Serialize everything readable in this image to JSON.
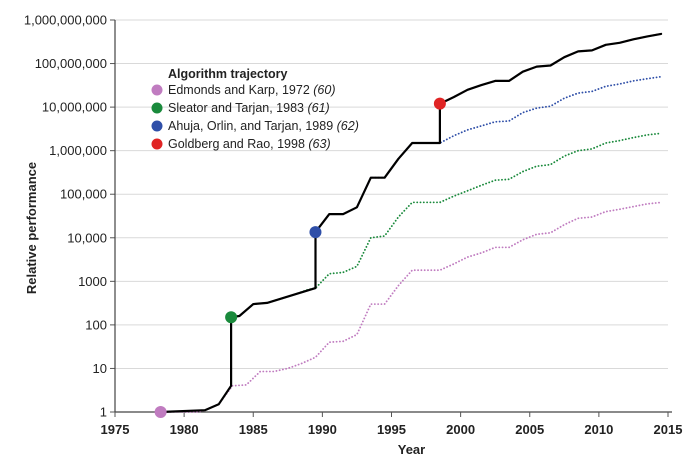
{
  "chart_data": {
    "type": "line",
    "xlabel": "Year",
    "ylabel": "Relative performance",
    "xlim": [
      1975,
      2015
    ],
    "ylim": [
      1,
      1000000000
    ],
    "y_scale": "log",
    "grid": "horizontal",
    "x_ticks": [
      1975,
      1980,
      1985,
      1990,
      1995,
      2000,
      2005,
      2010,
      2015
    ],
    "x_tick_labels": [
      "1975",
      "1980",
      "1985",
      "1990",
      "1995",
      "2000",
      "2005",
      "2010",
      "2015"
    ],
    "y_ticks": [
      1,
      10,
      100,
      1000,
      10000,
      100000,
      1000000,
      10000000,
      100000000,
      1000000000
    ],
    "y_tick_labels": [
      "1",
      "10",
      "100",
      "1000",
      "10,000",
      "100,000",
      "1,000,000",
      "10,000,000",
      "100,000,000",
      "1,000,000,000"
    ],
    "legend": {
      "title": "Algorithm trajectory",
      "position": "top-left",
      "entries": [
        {
          "label": "Edmonds and Karp, 1972 ",
          "ref": "(60)",
          "color": "#c07cc0"
        },
        {
          "label": "Sleator and Tarjan, 1983 ",
          "ref": "(61)",
          "color": "#1a8a3c"
        },
        {
          "label": "Ahuja, Orlin, and Tarjan, 1989 ",
          "ref": "(62)",
          "color": "#2f4fa8"
        },
        {
          "label": "Goldberg and Rao, 1998 ",
          "ref": "(63)",
          "color": "#e02424"
        }
      ]
    },
    "series": [
      {
        "name": "Edmonds and Karp, 1972 (60)",
        "color": "#c07cc0",
        "style": "dotted",
        "start_marker": [
          1978.3,
          1
        ],
        "x": [
          1978.3,
          1979,
          1980,
          1981,
          1981.5,
          1982.5,
          1983.5,
          1984.5,
          1985.5,
          1986.5,
          1987.5,
          1988.5,
          1989.5,
          1990.5,
          1991.5,
          1992.5,
          1993.5,
          1994.5,
          1995.5,
          1996.5,
          1997.5,
          1998.5,
          1999.5,
          2000.5,
          2001.5,
          2002.5,
          2003.5,
          2004.5,
          2005.5,
          2006.5,
          2007.5,
          2008.5,
          2009.5,
          2010.5,
          2011.5,
          2012.5,
          2013.5,
          2014.5
        ],
        "y": [
          1,
          1,
          1,
          1,
          1.1,
          1.5,
          4,
          4.2,
          8.5,
          8.5,
          10,
          13,
          18,
          40,
          42,
          60,
          300,
          300,
          800,
          1800,
          1800,
          1800,
          2500,
          3600,
          4500,
          6000,
          6000,
          9000,
          12000,
          13000,
          20000,
          28000,
          30000,
          40000,
          45000,
          52000,
          60000,
          65000
        ]
      },
      {
        "name": "Sleator and Tarjan, 1983 (61)",
        "color": "#1a8a3c",
        "style": "dotted",
        "start_marker": [
          1983.4,
          150
        ],
        "x": [
          1983.4,
          1984,
          1985,
          1986,
          1987,
          1988,
          1989,
          1989.5,
          1990.5,
          1991.5,
          1992.5,
          1993.5,
          1994.5,
          1995.5,
          1996.5,
          1997.5,
          1998.5,
          1999.5,
          2000.5,
          2001.5,
          2002.5,
          2003.5,
          2004.5,
          2005.5,
          2006.5,
          2007.5,
          2008.5,
          2009.5,
          2010.5,
          2011.5,
          2012.5,
          2013.5,
          2014.5
        ],
        "y": [
          150,
          160,
          300,
          320,
          400,
          500,
          650,
          700,
          1500,
          1600,
          2200,
          10000,
          11000,
          30000,
          65000,
          65000,
          65000,
          90000,
          120000,
          160000,
          210000,
          220000,
          330000,
          440000,
          480000,
          750000,
          1000000,
          1100000,
          1500000,
          1700000,
          2000000,
          2300000,
          2500000
        ]
      },
      {
        "name": "Ahuja, Orlin, and Tarjan, 1989 (62)",
        "color": "#2f4fa8",
        "style": "dotted",
        "start_marker": [
          1989.5,
          13500
        ],
        "x": [
          1989.5,
          1990.5,
          1991.5,
          1992.5,
          1993.5,
          1994.5,
          1995.5,
          1996.5,
          1997.5,
          1998.5,
          1999.5,
          2000.5,
          2001.5,
          2002.5,
          2003.5,
          2004.5,
          2005.5,
          2006.5,
          2007.5,
          2008.5,
          2009.5,
          2010.5,
          2011.5,
          2012.5,
          2013.5,
          2014.5
        ],
        "y": [
          13500,
          35000,
          35000,
          50000,
          240000,
          240000,
          650000,
          1500000,
          1500000,
          1500000,
          2200000,
          3000000,
          3700000,
          4600000,
          4800000,
          7500000,
          9500000,
          10500000,
          16000000,
          21000000,
          23000000,
          30000000,
          34000000,
          40000000,
          45000000,
          50000000
        ]
      },
      {
        "name": "Goldberg and Rao, 1998 (63)",
        "color": "#e02424",
        "style": "dotted",
        "start_marker": [
          1998.5,
          12000000
        ],
        "x": [
          1998.5,
          1999.5,
          2000.5,
          2001.5,
          2002.5,
          2003.5,
          2004.5,
          2005.5,
          2006.5,
          2007.5,
          2008.5,
          2009.5,
          2010.5,
          2011.5,
          2012.5,
          2013.5,
          2014.5
        ],
        "y": [
          12000000,
          17000000,
          25000000,
          32000000,
          40000000,
          40000000,
          65000000,
          85000000,
          90000000,
          140000000,
          190000000,
          200000000,
          270000000,
          300000000,
          360000000,
          420000000,
          480000000
        ]
      },
      {
        "name": "best-trajectory",
        "color": "#000000",
        "style": "solid",
        "x": [
          1978.3,
          1981.5,
          1982.5,
          1983.4,
          1983.4,
          1984,
          1985,
          1986,
          1987,
          1988,
          1989.5,
          1989.5,
          1990.5,
          1991.5,
          1992.5,
          1993.5,
          1994.5,
          1995.5,
          1996.5,
          1997.5,
          1998.5,
          1998.5,
          1999.5,
          2000.5,
          2001.5,
          2002.5,
          2003.5,
          2004.5,
          2005.5,
          2006.5,
          2007.5,
          2008.5,
          2009.5,
          2010.5,
          2011.5,
          2012.5,
          2013.5,
          2014.5
        ],
        "y": [
          1,
          1.1,
          1.5,
          4,
          150,
          160,
          300,
          320,
          400,
          500,
          700,
          13500,
          35000,
          35000,
          50000,
          240000,
          240000,
          650000,
          1500000,
          1500000,
          1500000,
          12000000,
          17000000,
          25000000,
          32000000,
          40000000,
          40000000,
          65000000,
          85000000,
          90000000,
          140000000,
          190000000,
          200000000,
          270000000,
          300000000,
          360000000,
          420000000,
          480000000
        ]
      }
    ]
  }
}
